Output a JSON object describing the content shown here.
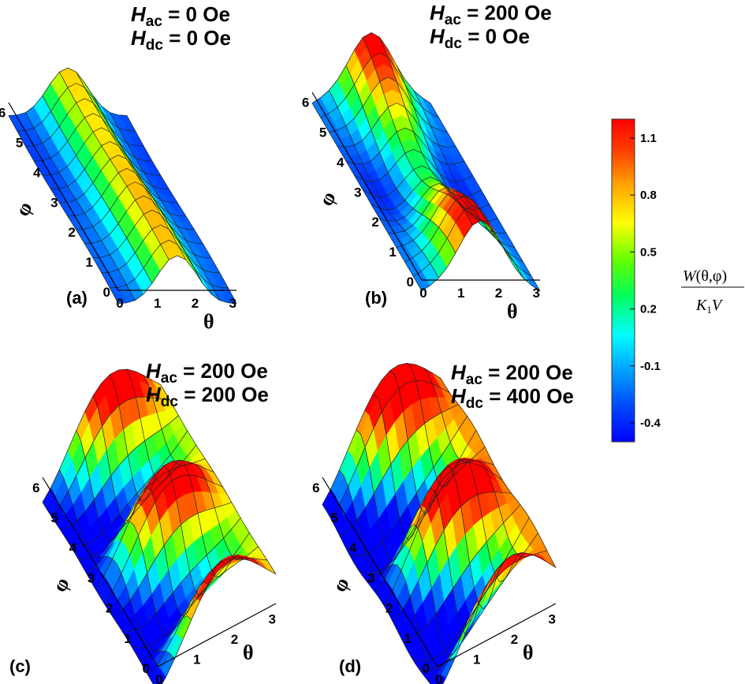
{
  "chart_data": [
    {
      "type": "surface",
      "panel_label": "(a)",
      "h_ac": "H",
      "h_ac_sub": "ac",
      "h_ac_value": " = 0 Oe",
      "h_dc": "H",
      "h_dc_sub": "dc",
      "h_dc_value": " = 0 Oe",
      "xlabel": "θ",
      "ylabel": "φ",
      "xticks": [
        "0",
        "1",
        "2",
        "3"
      ],
      "yticks": [
        "0",
        "1",
        "2",
        "3",
        "4",
        "5",
        "6"
      ],
      "xlim": [
        0,
        3.14
      ],
      "ylim": [
        0,
        6.28
      ],
      "zlim": [
        -0.5,
        1.2
      ]
    },
    {
      "type": "surface",
      "panel_label": "(b)",
      "h_ac": "H",
      "h_ac_sub": "ac",
      "h_ac_value": " = 200 Oe",
      "h_dc": "H",
      "h_dc_sub": "dc",
      "h_dc_value": " = 0 Oe",
      "xlabel": "θ",
      "ylabel": "φ",
      "xticks": [
        "0",
        "1",
        "2",
        "3"
      ],
      "yticks": [
        "0",
        "1",
        "2",
        "3",
        "4",
        "5",
        "6"
      ],
      "xlim": [
        0,
        3.14
      ],
      "ylim": [
        0,
        6.28
      ],
      "zlim": [
        -0.5,
        1.2
      ]
    },
    {
      "type": "surface",
      "panel_label": "(c)",
      "h_ac": "H",
      "h_ac_sub": "ac",
      "h_ac_value": " = 200 Oe",
      "h_dc": "H",
      "h_dc_sub": "dc",
      "h_dc_value": " = 200 Oe",
      "xlabel": "θ",
      "ylabel": "φ",
      "xticks": [
        "0",
        "1",
        "2",
        "3"
      ],
      "yticks": [
        "0",
        "1",
        "2",
        "3",
        "4",
        "5",
        "6"
      ],
      "xlim": [
        0,
        3.14
      ],
      "ylim": [
        0,
        6.28
      ],
      "zlim": [
        -0.5,
        1.2
      ]
    },
    {
      "type": "surface",
      "panel_label": "(d)",
      "h_ac": "H",
      "h_ac_sub": "ac",
      "h_ac_value": " = 200 Oe",
      "h_dc": "H",
      "h_dc_sub": "dc",
      "h_dc_value": " = 400 Oe",
      "xlabel": "θ",
      "ylabel": "φ",
      "xticks": [
        "0",
        "1",
        "2",
        "3"
      ],
      "yticks": [
        "0",
        "1",
        "2",
        "3",
        "4",
        "5",
        "6"
      ],
      "xlim": [
        0,
        3.14
      ],
      "ylim": [
        0,
        6.28
      ],
      "zlim": [
        -0.5,
        1.2
      ]
    }
  ],
  "colorbar": {
    "ticks": [
      "1.1",
      "0.8",
      "0.5",
      "0.2",
      "-0.1",
      "-0.4"
    ],
    "tick_values": [
      1.1,
      0.8,
      0.5,
      0.2,
      -0.1,
      -0.4
    ],
    "range": [
      -0.5,
      1.2
    ],
    "colors": [
      "#0000ff",
      "#00a0ff",
      "#00ffff",
      "#00ff40",
      "#80ff00",
      "#ffff00",
      "#ffa000",
      "#ff4000",
      "#ff0000"
    ],
    "label_num_W": "W",
    "label_num_args": "(θ,φ)",
    "label_den_K": "K",
    "label_den_sub": "1",
    "label_den_V": "V"
  }
}
